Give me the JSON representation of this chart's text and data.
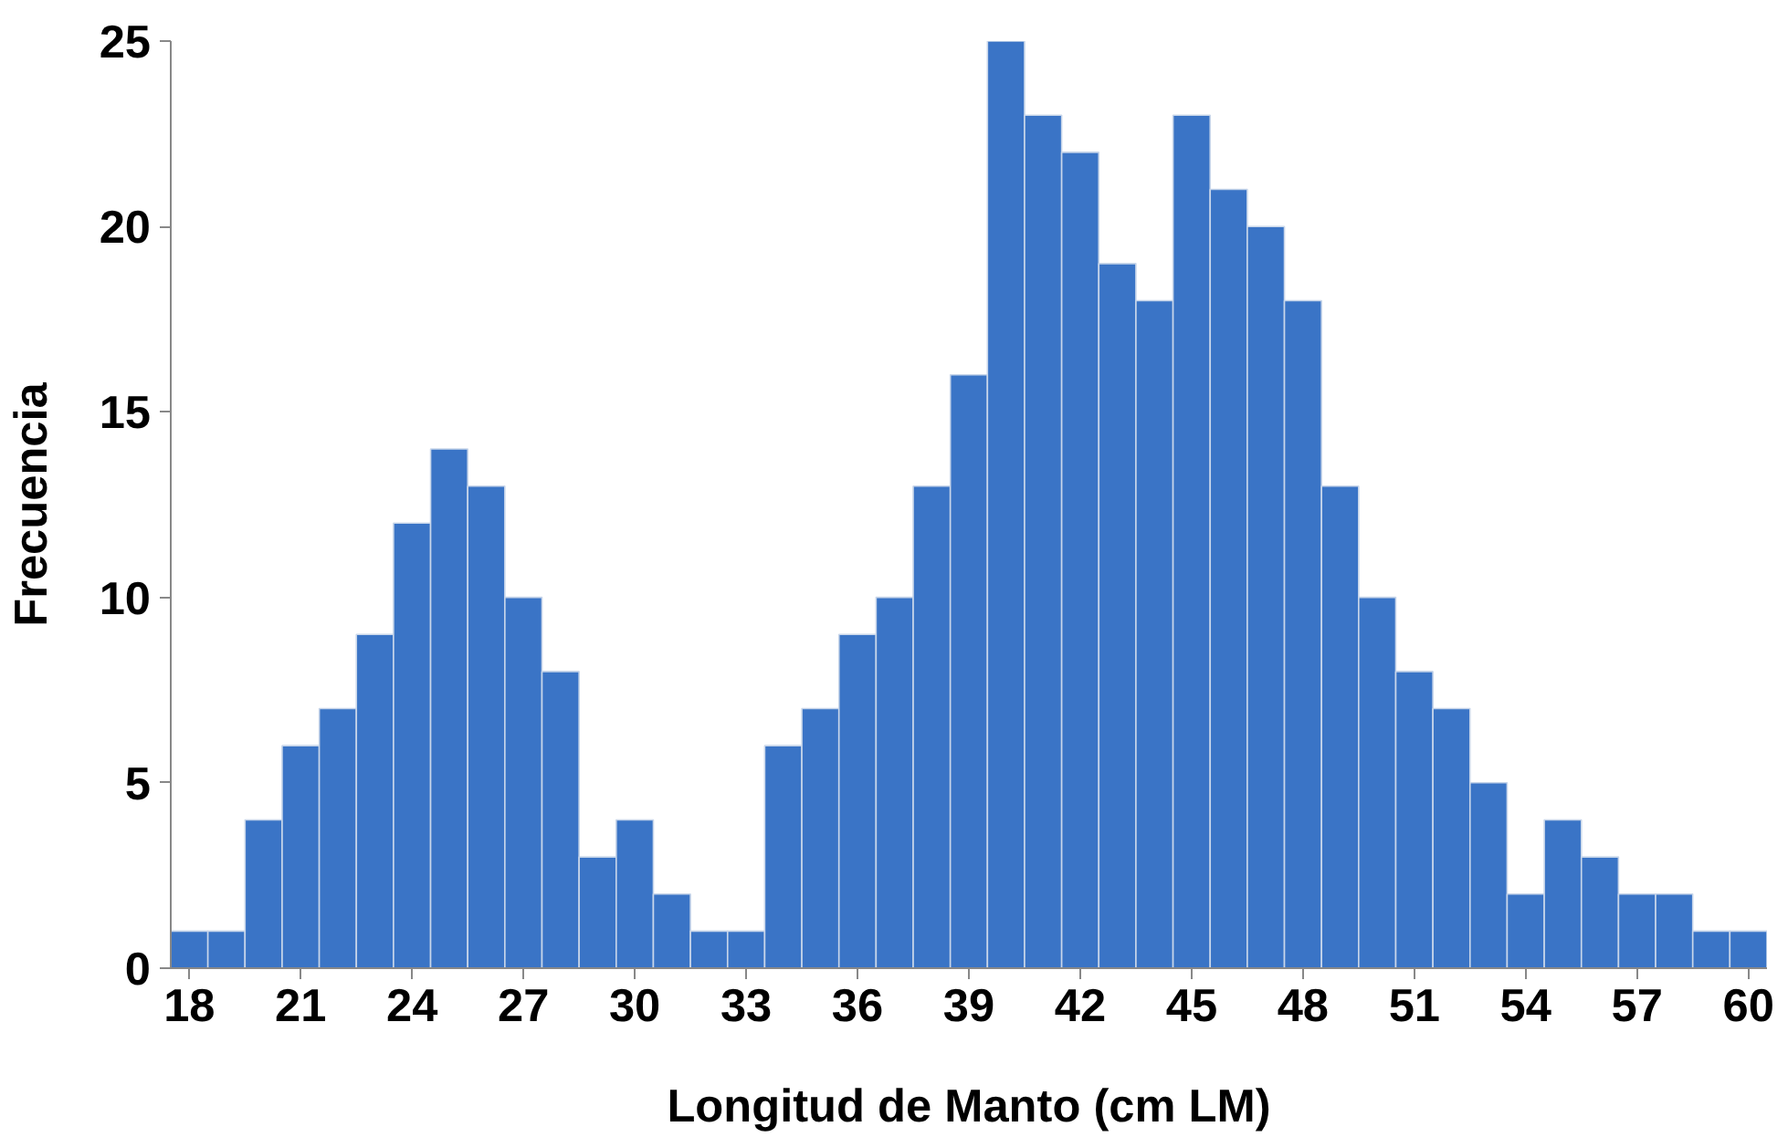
{
  "chart_data": {
    "type": "histogram",
    "xlabel": "Longitud de Manto (cm LM)",
    "ylabel": "Frecuencia",
    "bins": [
      17.5,
      18.5,
      19.5,
      20.5,
      21.5,
      22.5,
      23.5,
      24.5,
      25.5,
      26.5,
      27.5,
      28.5,
      29.5,
      30.5,
      31.5,
      32.5,
      33.5,
      34.5,
      35.5,
      36.5,
      37.5,
      38.5,
      39.5,
      40.5,
      41.5,
      42.5,
      43.5,
      44.5,
      45.5,
      46.5,
      47.5,
      48.5,
      49.5,
      50.5,
      51.5,
      52.5,
      53.5,
      54.5,
      55.5,
      56.5,
      57.5,
      58.5,
      59.5,
      60.5
    ],
    "values": [
      1,
      1,
      4,
      6,
      7,
      9,
      12,
      14,
      13,
      10,
      8,
      3,
      4,
      2,
      1,
      1,
      6,
      7,
      9,
      10,
      13,
      16,
      25,
      23,
      22,
      19,
      18,
      23,
      21,
      20,
      18,
      13,
      10,
      8,
      7,
      5,
      2,
      4,
      3,
      2,
      2,
      1,
      1
    ],
    "color": "#3a74c6",
    "xlim": [
      17.5,
      60.5
    ],
    "ylim": [
      0,
      25
    ],
    "xticks": [
      18,
      21,
      24,
      27,
      30,
      33,
      36,
      39,
      42,
      45,
      48,
      51,
      54,
      57,
      60
    ],
    "yticks": [
      0,
      5,
      10,
      15,
      20,
      25
    ],
    "grid": false
  }
}
